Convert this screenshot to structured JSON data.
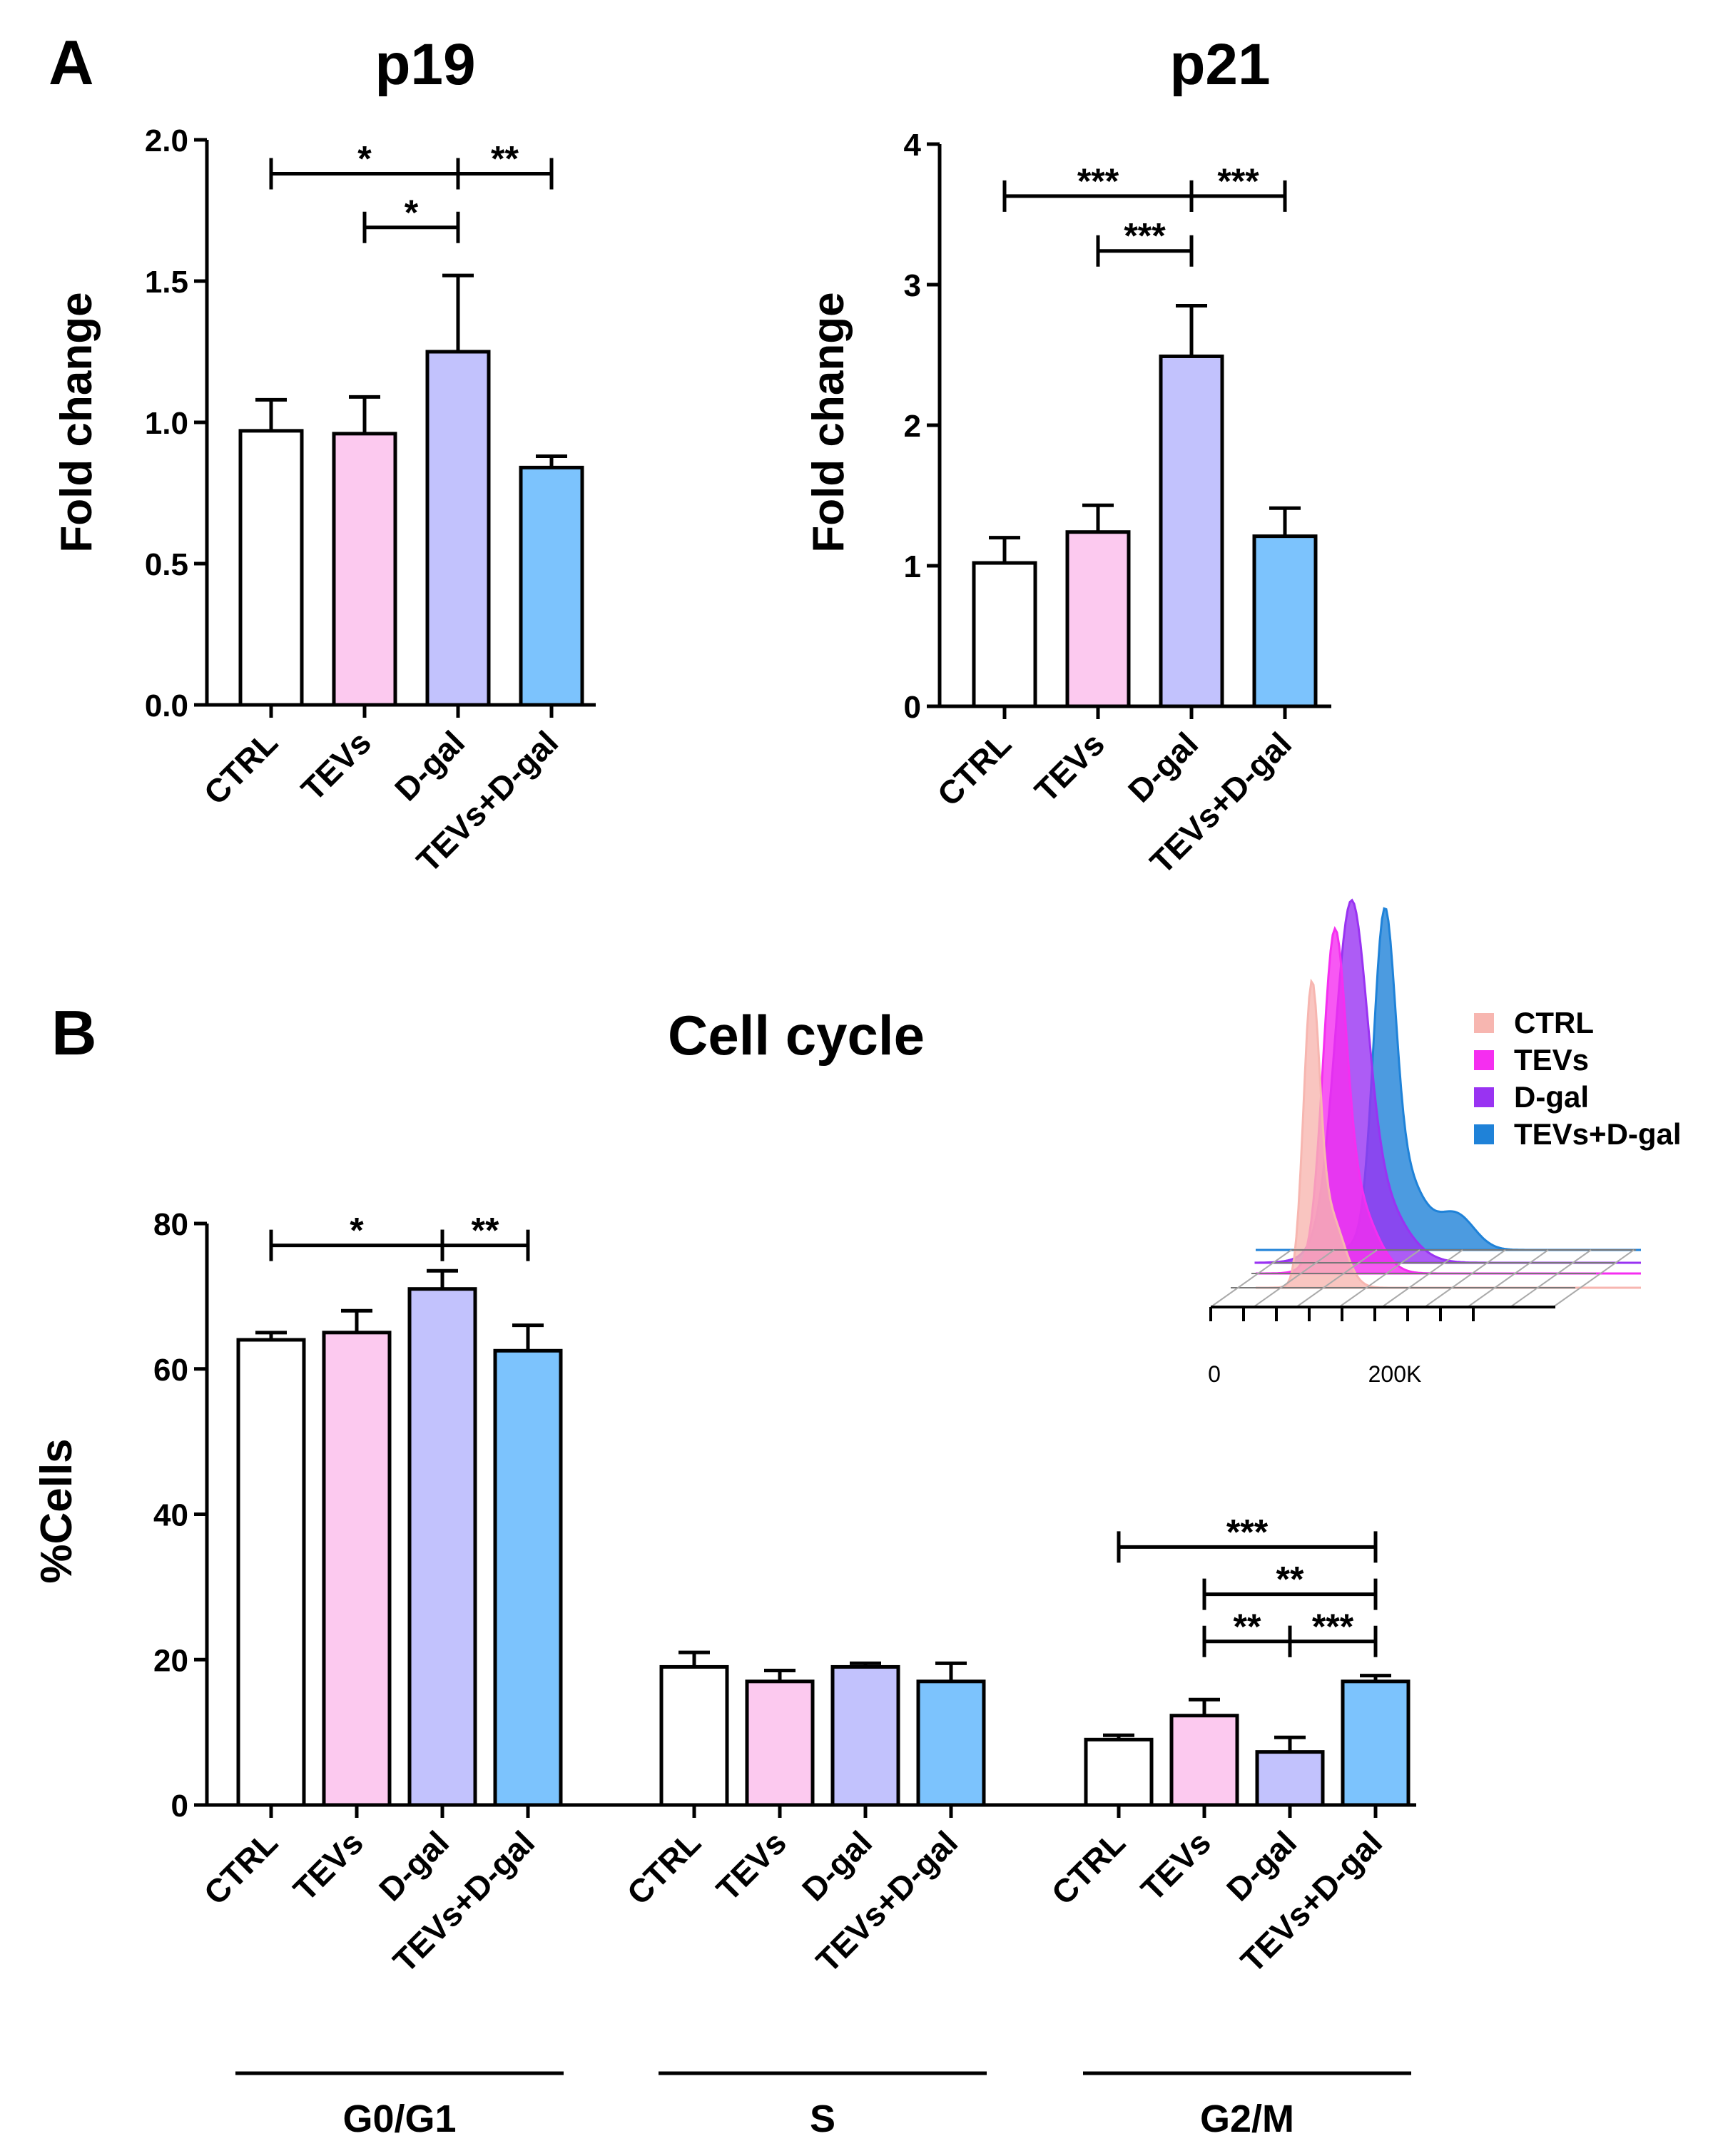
{
  "panel_labels": {
    "a": "A",
    "b": "B"
  },
  "colors": {
    "CTRL": "#ffffff",
    "TEVs": "#fcc9ef",
    "D-gal": "#c2c2fd",
    "TEVs+D-gal": "#7cc3fd",
    "hist_CTRL": "#f7b6b0",
    "hist_TEVs": "#f52ef0",
    "hist_D-gal": "#9933f2",
    "hist_TEVs+D-gal": "#1f82d8"
  },
  "chart_data": [
    {
      "id": "p19",
      "type": "bar",
      "title": "p19",
      "ylabel": "Fold change",
      "xlabel": "",
      "categories": [
        "CTRL",
        "TEVs",
        "D-gal",
        "TEVs+D-gal"
      ],
      "values": [
        0.97,
        0.96,
        1.25,
        0.84
      ],
      "errors": [
        0.11,
        0.13,
        0.27,
        0.04
      ],
      "ylim": [
        0,
        2.0
      ],
      "yticks": [
        "0.0",
        "0.5",
        "1.0",
        "1.5",
        "2.0"
      ],
      "significance": [
        {
          "from": 0,
          "to": 2,
          "label": "*",
          "y": 1.88
        },
        {
          "from": 2,
          "to": 3,
          "label": "**",
          "y": 1.88
        },
        {
          "from": 1,
          "to": 2,
          "label": "*",
          "y": 1.69
        }
      ]
    },
    {
      "id": "p21",
      "type": "bar",
      "title": "p21",
      "ylabel": "Fold change",
      "xlabel": "",
      "categories": [
        "CTRL",
        "TEVs",
        "D-gal",
        "TEVs+D-gal"
      ],
      "values": [
        1.02,
        1.24,
        2.49,
        1.21
      ],
      "errors": [
        0.18,
        0.19,
        0.36,
        0.2
      ],
      "ylim": [
        0,
        4
      ],
      "yticks": [
        "0",
        "1",
        "2",
        "3",
        "4"
      ],
      "significance": [
        {
          "from": 0,
          "to": 2,
          "label": "***",
          "y": 3.63
        },
        {
          "from": 2,
          "to": 3,
          "label": "***",
          "y": 3.63
        },
        {
          "from": 1,
          "to": 2,
          "label": "***",
          "y": 3.24
        }
      ]
    },
    {
      "id": "cell_cycle",
      "type": "bar",
      "title": "Cell cycle",
      "ylabel": "%Cells",
      "xlabel": "",
      "groups": [
        "G0/G1",
        "S",
        "G2/M"
      ],
      "categories": [
        "CTRL",
        "TEVs",
        "D-gal",
        "TEVs+D-gal"
      ],
      "series": [
        {
          "name": "G0/G1",
          "values": [
            64,
            65,
            71,
            62.5
          ],
          "errors": [
            1,
            3,
            2.5,
            3.5
          ]
        },
        {
          "name": "S",
          "values": [
            19,
            17,
            19,
            17
          ],
          "errors": [
            2,
            1.5,
            0.5,
            2.5
          ]
        },
        {
          "name": "G2/M",
          "values": [
            9,
            12.3,
            7.3,
            17
          ],
          "errors": [
            0.6,
            2.2,
            2,
            0.8
          ]
        }
      ],
      "ylim": [
        0,
        80
      ],
      "yticks": [
        "0",
        "20",
        "40",
        "60",
        "80"
      ],
      "significance": [
        {
          "group": 0,
          "from": 0,
          "to": 2,
          "label": "*",
          "y": 77
        },
        {
          "group": 0,
          "from": 2,
          "to": 3,
          "label": "**",
          "y": 77
        },
        {
          "group": 2,
          "from": 0,
          "to": 3,
          "label": "***",
          "y": 35.5
        },
        {
          "group": 2,
          "from": 1,
          "to": 3,
          "label": "**",
          "y": 29
        },
        {
          "group": 2,
          "from": 1,
          "to": 2,
          "label": "**",
          "y": 22.5
        },
        {
          "group": 2,
          "from": 2,
          "to": 3,
          "label": "***",
          "y": 22.5
        }
      ]
    }
  ],
  "inset": {
    "type": "histogram-overlay",
    "x_ticks": [
      "0",
      "200K"
    ],
    "legend": [
      "CTRL",
      "TEVs",
      "D-gal",
      "TEVs+D-gal"
    ]
  }
}
